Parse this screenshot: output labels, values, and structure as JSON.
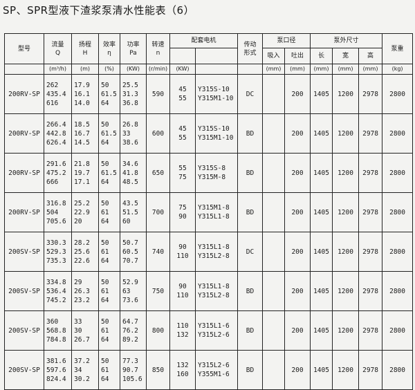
{
  "title": "SP、SPR型液下渣浆泵清水性能表（6）",
  "header": {
    "model": "型号",
    "flow": "流量\nQ",
    "head": "扬程\nH",
    "eff": "效率\nη",
    "power": "功率\nPa",
    "speed": "转速\nn",
    "motor": "配套电机",
    "drive": "传动\n形式",
    "port": "泵口径",
    "inlet": "吸入",
    "outlet": "吐出",
    "dims": "泵外尺寸",
    "length": "长",
    "width": "宽",
    "height": "高",
    "weight": "泵重",
    "units": {
      "flow": "(m³/h)",
      "head": "(m)",
      "eff": "(%)",
      "power": "(KW)",
      "speed": "(r/min)",
      "motor_kw": "(KW)",
      "inlet": "(mm)",
      "outlet": "(mm)",
      "length": "(mm)",
      "width": "(mm)",
      "height": "(mm)",
      "weight": "(kg)"
    }
  },
  "rows": [
    {
      "model": "200RV-SP",
      "q": "262\n435.4\n616",
      "h": "17.9\n16.1\n14.0",
      "eff": "50\n61.5\n64",
      "pa": "25.5\n31.3\n36.8",
      "n": "590",
      "kw": "45\n55",
      "motor": "Y315S-10\nY315M1-10",
      "drive": "DC",
      "inlet": "",
      "outlet": "200",
      "l": "1405",
      "w": "1200",
      "ht": "2978",
      "wt": "2800"
    },
    {
      "model": "200RV-SP",
      "q": "266.4\n442.8\n626.4",
      "h": "18.5\n16.7\n14.5",
      "eff": "50\n61.5\n64",
      "pa": "26.8\n33\n38.6",
      "n": "600",
      "kw": "45\n55",
      "motor": "Y315S-10\nY315M1-10",
      "drive": "BD",
      "inlet": "",
      "outlet": "200",
      "l": "1405",
      "w": "1200",
      "ht": "2978",
      "wt": "2800"
    },
    {
      "model": "200RV-SP",
      "q": "291.6\n475.2\n666",
      "h": "21.8\n19.7\n17.1",
      "eff": "50\n61.5\n64",
      "pa": "34.6\n41.8\n48.5",
      "n": "650",
      "kw": "55\n75",
      "motor": "Y315S-8\nY315M-8",
      "drive": "BD",
      "inlet": "",
      "outlet": "200",
      "l": "1405",
      "w": "1200",
      "ht": "2978",
      "wt": "2800"
    },
    {
      "model": "200RV-SP",
      "q": "316.8\n504\n705.6",
      "h": "25.2\n22.9\n20",
      "eff": "50\n61\n64",
      "pa": "43.5\n51.5\n60",
      "n": "700",
      "kw": "75\n90",
      "motor": "Y315M1-8\nY315L1-8",
      "drive": "BD",
      "inlet": "",
      "outlet": "200",
      "l": "1405",
      "w": "1200",
      "ht": "2978",
      "wt": "2800"
    },
    {
      "model": "200SV-SP",
      "q": "330.3\n529.3\n735.3",
      "h": "28.2\n25.6\n22.6",
      "eff": "50\n61\n64",
      "pa": "50.7\n60.5\n70.7",
      "n": "740",
      "kw": "90\n110",
      "motor": "Y315L1-8\nY315L2-8",
      "drive": "DC",
      "inlet": "",
      "outlet": "200",
      "l": "1405",
      "w": "1200",
      "ht": "2978",
      "wt": "2800"
    },
    {
      "model": "200SV-SP",
      "q": "334.8\n536.4\n745.2",
      "h": "29\n26.3\n23.2",
      "eff": "50\n61\n64",
      "pa": "52.9\n63\n73.6",
      "n": "750",
      "kw": "90\n110",
      "motor": "Y315L1-8\nY315L2-8",
      "drive": "BD",
      "inlet": "",
      "outlet": "200",
      "l": "1405",
      "w": "1200",
      "ht": "2978",
      "wt": "2800"
    },
    {
      "model": "200SV-SP",
      "q": "360\n568.8\n784.8",
      "h": "33\n30\n26.7",
      "eff": "50\n61\n64",
      "pa": "64.7\n76.2\n89.2",
      "n": "800",
      "kw": "110\n132",
      "motor": "Y315L1-6\nY315L2-6",
      "drive": "BD",
      "inlet": "",
      "outlet": "200",
      "l": "1405",
      "w": "1200",
      "ht": "2978",
      "wt": "2800"
    },
    {
      "model": "200SV-SP",
      "q": "381.6\n597.6\n824.4",
      "h": "37.2\n34\n30.2",
      "eff": "50\n61\n64",
      "pa": "77.3\n90.7\n105.6",
      "n": "850",
      "kw": "132\n160",
      "motor": "Y315L2-6\nY355M1-6",
      "drive": "BD",
      "inlet": "",
      "outlet": "200",
      "l": "1405",
      "w": "1200",
      "ht": "2978",
      "wt": "2800"
    }
  ]
}
